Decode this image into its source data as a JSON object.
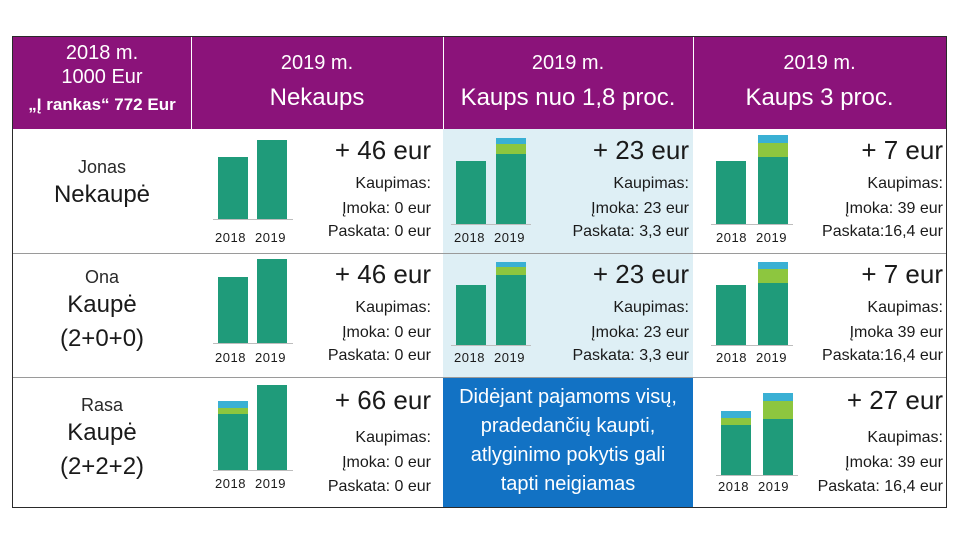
{
  "header": {
    "left": {
      "line1": "2018 m.",
      "line2": "1000 Eur",
      "line3": "„Į rankas“ 772 Eur"
    },
    "cols": [
      {
        "year": "2019 m.",
        "title": "Nekaups"
      },
      {
        "year": "2019 m.",
        "title": "Kaups nuo 1,8 proc."
      },
      {
        "year": "2019 m.",
        "title": "Kaups 3 proc."
      }
    ]
  },
  "rows": [
    {
      "name": "Jonas",
      "status": "Nekaupė",
      "cells": [
        {
          "increase": "+ 46 eur",
          "kaupimas": "Kaupimas:",
          "imoka": "Įmoka: 0 eur",
          "paskata": "Paskata: 0 eur"
        },
        {
          "increase": "+ 23 eur",
          "kaupimas": "Kaupimas:",
          "imoka": "Įmoka: 23 eur",
          "paskata": "Paskata: 3,3 eur"
        },
        {
          "increase": "+ 7 eur",
          "kaupimas": "Kaupimas:",
          "imoka": "Įmoka: 39 eur",
          "paskata": "Paskata:16,4 eur"
        }
      ]
    },
    {
      "name": "Ona",
      "status_line1": "Kaupė",
      "status_line2": "(2+0+0)",
      "cells": [
        {
          "increase": "+ 46 eur",
          "kaupimas": "Kaupimas:",
          "imoka": "Įmoka: 0 eur",
          "paskata": "Paskata: 0 eur"
        },
        {
          "increase": "+ 23 eur",
          "kaupimas": "Kaupimas:",
          "imoka": "Įmoka: 23 eur",
          "paskata": "Paskata: 3,3 eur"
        },
        {
          "increase": "+ 7 eur",
          "kaupimas": "Kaupimas:",
          "imoka": "Įmoka 39 eur",
          "paskata": "Paskata:16,4 eur"
        }
      ]
    },
    {
      "name": "Rasa",
      "status_line1": "Kaupė",
      "status_line2": "(2+2+2)",
      "cells": [
        {
          "increase": "+ 66 eur",
          "kaupimas": "Kaupimas:",
          "imoka": "Įmoka: 0 eur",
          "paskata": "Paskata: 0 eur"
        },
        {
          "note_lines": [
            "Didėjant pajamoms visų,",
            "pradedančių kaupti,",
            "atlyginimo pokytis gali",
            "tapti neigiamas"
          ]
        },
        {
          "increase": "+ 27 eur",
          "kaupimas": "Kaupimas:",
          "imoka": "Įmoka: 39 eur",
          "paskata": "Paskata: 16,4 eur"
        }
      ]
    }
  ],
  "chart_labels": {
    "year_a": "2018",
    "year_b": "2019"
  },
  "colors": {
    "header": "#8b137a",
    "bar": "#1f9b7a",
    "contrib_green": "#8dc63f",
    "contrib_blue": "#3ab0d4",
    "light_bg": "#deeff5",
    "note_bg": "#1272c4"
  }
}
